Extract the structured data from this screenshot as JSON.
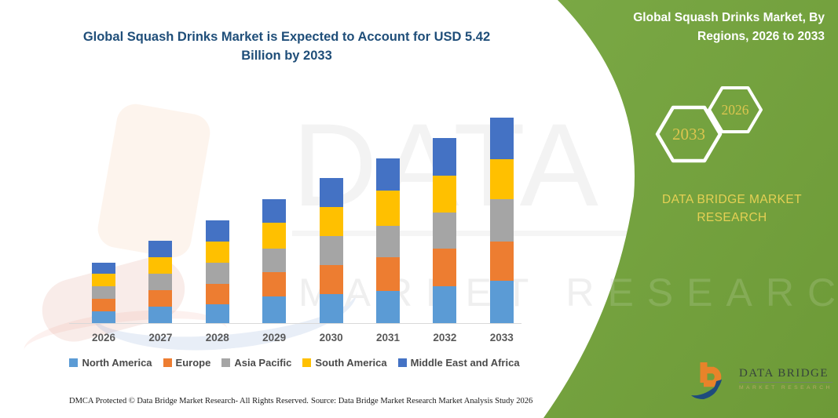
{
  "header": {
    "main_title": "Global Squash Drinks Market is Expected to Account for USD 5.42 Billion by 2033",
    "panel_title": "Global Squash Drinks Market, By Regions, 2026 to 2033"
  },
  "side_panel": {
    "hexagons": [
      {
        "label": "2033"
      },
      {
        "label": "2026"
      }
    ],
    "brand_text": "DATA BRIDGE MARKET RESEARCH",
    "panel_color": "#73A03D",
    "accent_yellow": "#DBC54F"
  },
  "logo": {
    "name": "DATA BRIDGE",
    "subtitle": "MARKET RESEARCH"
  },
  "watermark": {
    "line1": "DATA BRI",
    "line2": "MARKET RESEARCH"
  },
  "footer": {
    "dmca": "DMCA Protected © Data Bridge Market Research-  All Rights Reserved.",
    "source": "Source: Data Bridge Market Research  Market Analysis Study 2026"
  },
  "chart_data": {
    "type": "bar",
    "stacked": true,
    "title": "Global Squash Drinks Market is Expected to Account for USD 5.42 Billion by 2033",
    "unit": "USD Billion",
    "categories": [
      "2026",
      "2027",
      "2028",
      "2029",
      "2030",
      "2031",
      "2032",
      "2033"
    ],
    "series": [
      {
        "name": "North America",
        "color": "#5B9BD5",
        "values": [
          0.31,
          0.43,
          0.5,
          0.7,
          0.76,
          0.85,
          0.97,
          1.12
        ]
      },
      {
        "name": "Europe",
        "color": "#ED7D31",
        "values": [
          0.34,
          0.43,
          0.53,
          0.65,
          0.77,
          0.88,
          0.99,
          1.04
        ]
      },
      {
        "name": "Asia Pacific",
        "color": "#A5A5A5",
        "values": [
          0.32,
          0.45,
          0.56,
          0.62,
          0.76,
          0.83,
          0.96,
          1.11
        ]
      },
      {
        "name": "South America",
        "color": "#FFC000",
        "values": [
          0.34,
          0.43,
          0.56,
          0.68,
          0.78,
          0.93,
          0.98,
          1.06
        ]
      },
      {
        "name": "Middle East and Africa",
        "color": "#4472C4",
        "values": [
          0.28,
          0.43,
          0.57,
          0.62,
          0.75,
          0.86,
          0.99,
          1.09
        ]
      }
    ],
    "totals": [
      1.59,
      2.17,
      2.72,
      3.27,
      3.82,
      4.35,
      4.89,
      5.42
    ],
    "highlight_total_2033": 5.42,
    "ylim": [
      0,
      5.6
    ],
    "grid": false,
    "legend_position": "bottom"
  }
}
